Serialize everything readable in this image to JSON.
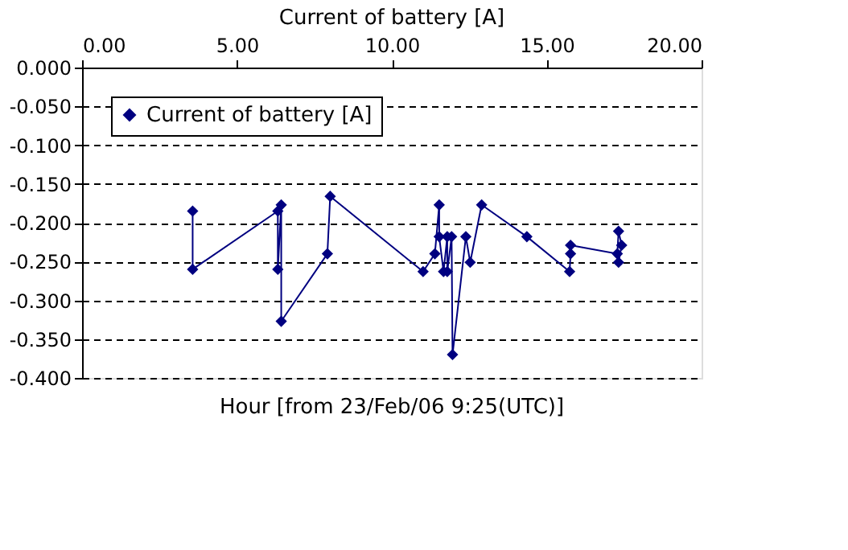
{
  "chart_data": {
    "type": "line",
    "title": "Current of battery [A]",
    "xlabel": "Hour [from 23/Feb/06 9:25(UTC)]",
    "series": [
      {
        "name": "Current of battery [A]",
        "color": "#000080",
        "x": [
          3.57,
          3.57,
          6.32,
          6.32,
          6.43,
          6.43,
          7.92,
          8.01,
          11.01,
          11.39,
          11.53,
          11.53,
          11.67,
          11.79,
          11.79,
          11.93,
          11.96,
          12.39,
          12.53,
          12.9,
          14.36,
          15.74,
          15.77,
          15.77,
          17.28,
          17.32,
          17.42,
          17.32
        ],
        "values": [
          -0.185,
          -0.26,
          -0.185,
          -0.26,
          -0.177,
          -0.327,
          -0.24,
          -0.166,
          -0.263,
          -0.24,
          -0.177,
          -0.218,
          -0.263,
          -0.218,
          -0.263,
          -0.218,
          -0.37,
          -0.218,
          -0.251,
          -0.177,
          -0.218,
          -0.263,
          -0.24,
          -0.229,
          -0.24,
          -0.211,
          -0.229,
          -0.251
        ]
      }
    ],
    "xlim": [
      0,
      20
    ],
    "xticks": [
      {
        "value": 0,
        "label": "0.00"
      },
      {
        "value": 5,
        "label": "5.00"
      },
      {
        "value": 10,
        "label": "10.00"
      },
      {
        "value": 15,
        "label": "15.00"
      },
      {
        "value": 20,
        "label": "20.00"
      }
    ],
    "ylim": [
      -0.4,
      0
    ],
    "yticks": [
      {
        "value": 0,
        "label": "0.000"
      },
      {
        "value": -0.05,
        "label": "-0.050"
      },
      {
        "value": -0.1,
        "label": "-0.100"
      },
      {
        "value": -0.15,
        "label": "-0.150"
      },
      {
        "value": -0.2,
        "label": "-0.200"
      },
      {
        "value": -0.25,
        "label": "-0.250"
      },
      {
        "value": -0.3,
        "label": "-0.300"
      },
      {
        "value": -0.35,
        "label": "-0.350"
      },
      {
        "value": -0.4,
        "label": "-0.400"
      }
    ],
    "grid": "y",
    "legend": "top left",
    "marker": "diamond",
    "line_style": "solid"
  }
}
